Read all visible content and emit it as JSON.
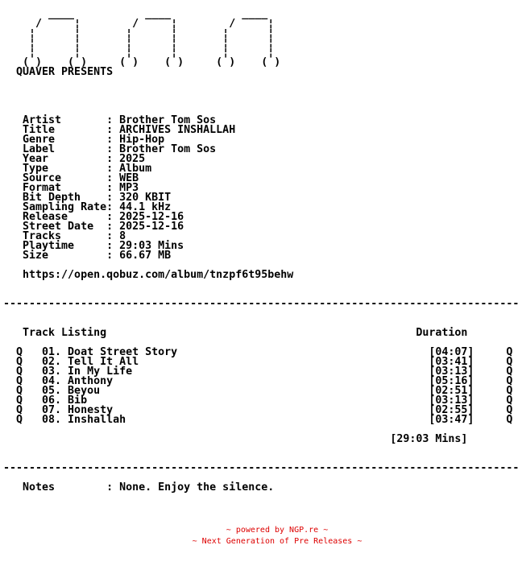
{
  "page": {
    "background": "#ffffff",
    "text_color": "#000000",
    "accent_red": "#dd0000"
  },
  "art": {
    "lines": [
      "       ____           ____           ____",
      "     /     ¦        /     ¦        /     ¦",
      "    ¦      ¦       ¦      ¦       ¦      ¦",
      "    ¦      ¦       ¦      ¦       ¦      ¦",
      "    ¦      ¦       ¦      ¦       ¦      ¦",
      "   ( )    ( )     ( )    ( )     ( )    ( )"
    ],
    "presents": "QUAVER PRESENTS"
  },
  "release_info": {
    "fields": [
      {
        "label": "Artist",
        "value": "Brother Tom Sos"
      },
      {
        "label": "Title",
        "value": "ARCHIVES INSHALLAH"
      },
      {
        "label": "Genre",
        "value": "Hip-Hop"
      },
      {
        "label": "Label",
        "value": "Brother Tom Sos"
      },
      {
        "label": "Year",
        "value": "2025"
      },
      {
        "label": "Type",
        "value": "Album"
      },
      {
        "label": "Source",
        "value": "WEB"
      },
      {
        "label": "Format",
        "value": "MP3"
      },
      {
        "label": "Bit Depth",
        "value": "320 KBIT"
      },
      {
        "label": "Sampling Rate",
        "value": "44.1 kHz"
      },
      {
        "label": "Release",
        "value": "2025-12-16"
      },
      {
        "label": "Street Date",
        "value": "2025-12-16"
      },
      {
        "label": "Tracks",
        "value": "8"
      },
      {
        "label": "Playtime",
        "value": "29:03 Mins"
      },
      {
        "label": "Size",
        "value": "66.67 MB"
      }
    ],
    "url": "https://open.qobuz.com/album/tnzpf6t95behw"
  },
  "tracklist": {
    "heading": "Track Listing",
    "duration_heading": "Duration",
    "row_marker": "Q",
    "items": [
      {
        "num": "01",
        "title": "Doat Street Story",
        "duration": "04:07"
      },
      {
        "num": "02",
        "title": "Tell It All",
        "duration": "03:41"
      },
      {
        "num": "03",
        "title": "In My Life",
        "duration": "03:13"
      },
      {
        "num": "04",
        "title": "Anthony",
        "duration": "05:16"
      },
      {
        "num": "05",
        "title": "Beyou",
        "duration": "02:51"
      },
      {
        "num": "06",
        "title": "Bib",
        "duration": "03:13"
      },
      {
        "num": "07",
        "title": "Honesty",
        "duration": "02:55"
      },
      {
        "num": "08",
        "title": "Inshallah",
        "duration": "03:47"
      }
    ],
    "total": "29:03 Mins"
  },
  "notes": {
    "label": "Notes",
    "value": "None. Enjoy the silence."
  },
  "footer": {
    "line1": "~ powered by NGP.re ~",
    "line2": "~ Next Generation of Pre Releases ~"
  }
}
